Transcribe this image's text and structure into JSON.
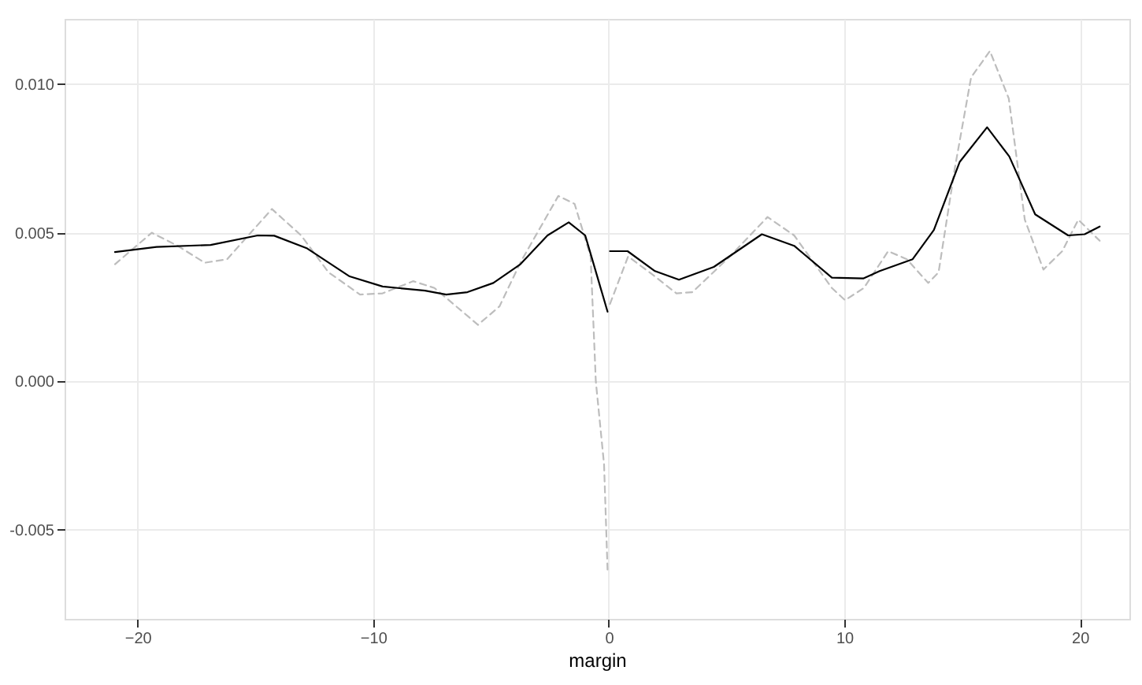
{
  "chart_data": {
    "type": "line",
    "xlabel": "margin",
    "xlim": [
      -23.1,
      22.1
    ],
    "xticks": [
      -20,
      -10,
      0,
      10,
      20
    ],
    "ylim": [
      -0.008,
      0.0122
    ],
    "yticks": [
      {
        "value": -0.005,
        "label": "-0.005"
      },
      {
        "value": 0.0,
        "label": "0.000"
      },
      {
        "value": 0.005,
        "label": "0.005"
      },
      {
        "value": 0.01,
        "label": "0.010"
      }
    ],
    "grid": true,
    "legend": false,
    "series": [
      {
        "color": "#bdbdbd",
        "line_style": "dashed",
        "x": [
          -20.96,
          -19.4,
          -18.3,
          -17.15,
          -16.2,
          -14.3,
          -13.06,
          -11.9,
          -10.56,
          -9.6,
          -8.3,
          -7.4,
          -5.55,
          -4.64,
          -3.73,
          -2.14,
          -1.45,
          -0.77,
          -0.55,
          -0.2,
          -0.05,
          0.0,
          0.05,
          0.82,
          1.73,
          2.87,
          3.55,
          5.14,
          6.74,
          7.87,
          9.47,
          10.03,
          10.83,
          11.86,
          12.65,
          13.56,
          14.0,
          14.7,
          15.38,
          16.18,
          16.98,
          17.66,
          18.45,
          19.25,
          19.93,
          20.84
        ],
        "values": [
          0.00394,
          0.005,
          0.00456,
          0.00399,
          0.00411,
          0.0058,
          0.00491,
          0.00367,
          0.00292,
          0.00296,
          0.00337,
          0.00314,
          0.0019,
          0.00252,
          0.00403,
          0.00624,
          0.00597,
          0.0042,
          0.0,
          -0.0028,
          -0.0064,
          null,
          0.0026,
          0.0042,
          0.00367,
          0.00296,
          0.003,
          0.0042,
          0.00553,
          0.00491,
          0.00314,
          0.00273,
          0.00314,
          0.00438,
          0.00411,
          0.00331,
          0.00367,
          0.00722,
          0.01023,
          0.01112,
          0.00952,
          0.00544,
          0.00376,
          0.00438,
          0.00544,
          0.00473
        ]
      },
      {
        "color": "#000000",
        "line_style": "solid",
        "x": [
          -20.96,
          -19.2,
          -16.9,
          -14.9,
          -14.2,
          -12.8,
          -11.0,
          -9.6,
          -7.8,
          -6.9,
          -6.0,
          -4.9,
          -3.75,
          -2.6,
          -1.7,
          -1.0,
          -0.77,
          -0.05,
          0.0,
          0.05,
          0.8,
          1.96,
          2.98,
          4.46,
          6.5,
          7.87,
          9.47,
          10.8,
          11.5,
          12.9,
          13.8,
          14.9,
          16.06,
          17.0,
          18.1,
          19.5,
          20.2,
          20.84
        ],
        "values": [
          0.00435,
          0.00452,
          0.00459,
          0.00491,
          0.0049,
          0.00447,
          0.00353,
          0.00319,
          0.00305,
          0.00292,
          0.003,
          0.00331,
          0.00394,
          0.00491,
          0.00535,
          0.00491,
          0.00429,
          0.00234,
          null,
          0.00438,
          0.00438,
          0.00371,
          0.00342,
          0.00385,
          0.00495,
          0.00456,
          0.00349,
          0.00346,
          0.00371,
          0.00411,
          0.00509,
          0.00739,
          0.00855,
          0.00757,
          0.00562,
          0.00491,
          0.00495,
          0.00521
        ]
      }
    ]
  }
}
